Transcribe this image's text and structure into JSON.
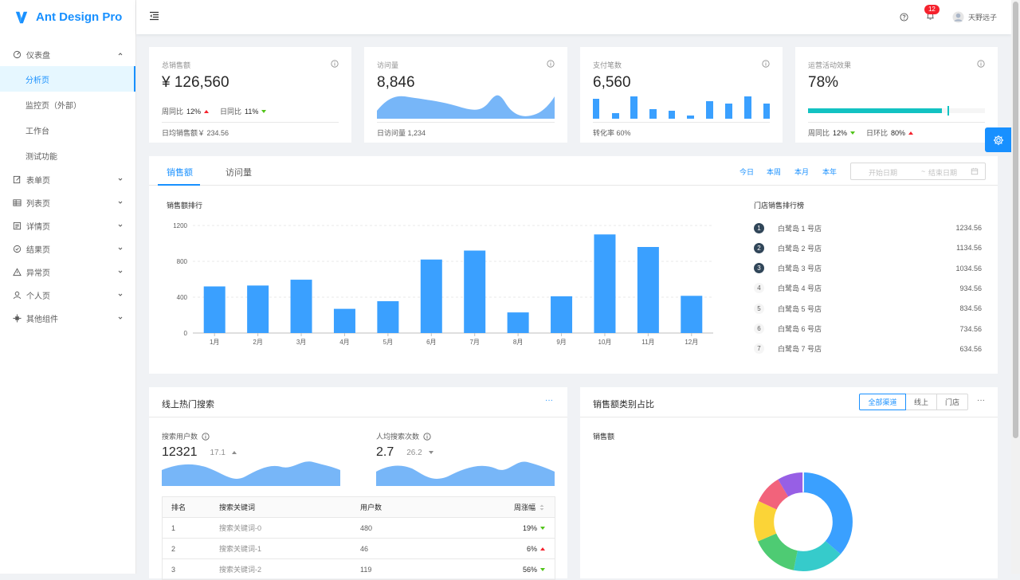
{
  "app": {
    "title": "Ant Design Pro"
  },
  "sidebar": {
    "dashboard": "仪表盘",
    "sub": [
      "分析页",
      "监控页（外部）",
      "工作台",
      "测试功能"
    ],
    "items": [
      "表单页",
      "列表页",
      "详情页",
      "结果页",
      "异常页",
      "个人页",
      "其他组件"
    ]
  },
  "header": {
    "notification_count": "12",
    "user": "天野远子"
  },
  "stats": {
    "sales": {
      "title": "总销售额",
      "value": "¥ 126,560",
      "wow_label": "周同比",
      "wow": "12%",
      "dod_label": "日同比",
      "dod": "11%",
      "footer": "日均销售额￥ 234.56"
    },
    "visits": {
      "title": "访问量",
      "value": "8,846",
      "footer": "日访问量 1,234"
    },
    "payments": {
      "title": "支付笔数",
      "value": "6,560",
      "footer": "转化率 60%"
    },
    "ops": {
      "title": "运营活动效果",
      "value": "78%",
      "progress": 0.78,
      "wow_label": "周同比",
      "wow": "12%",
      "dod_label": "日环比",
      "dod": "80%"
    }
  },
  "sales_card": {
    "tabs": [
      "销售额",
      "访问量"
    ],
    "periods": [
      "今日",
      "本周",
      "本月",
      "本年"
    ],
    "start_placeholder": "开始日期",
    "range_sep": "~",
    "end_placeholder": "结束日期",
    "chart_title": "销售额排行",
    "ranking_title": "门店销售排行榜",
    "ranking": [
      {
        "rank": "1",
        "name": "白鹭岛 1 号店",
        "value": "1234.56"
      },
      {
        "rank": "2",
        "name": "白鹭岛 2 号店",
        "value": "1134.56"
      },
      {
        "rank": "3",
        "name": "白鹭岛 3 号店",
        "value": "1034.56"
      },
      {
        "rank": "4",
        "name": "白鹭岛 4 号店",
        "value": "934.56"
      },
      {
        "rank": "5",
        "name": "白鹭岛 5 号店",
        "value": "834.56"
      },
      {
        "rank": "6",
        "name": "白鹭岛 6 号店",
        "value": "734.56"
      },
      {
        "rank": "7",
        "name": "白鹭岛 7 号店",
        "value": "634.56"
      }
    ]
  },
  "chart_data": {
    "type": "bar",
    "categories": [
      "1月",
      "2月",
      "3月",
      "4月",
      "5月",
      "6月",
      "7月",
      "8月",
      "9月",
      "10月",
      "11月",
      "12月"
    ],
    "values": [
      520,
      530,
      595,
      270,
      355,
      820,
      920,
      230,
      410,
      1100,
      960,
      415
    ],
    "ylim": [
      0,
      1200
    ],
    "yticks": [
      0,
      400,
      800,
      1200
    ],
    "color": "#3aa0ff",
    "grid": true
  },
  "search_card": {
    "title": "线上热门搜索",
    "more": "···",
    "users_label": "搜索用户数",
    "users_value": "12321",
    "users_change": "17.1",
    "avg_label": "人均搜索次数",
    "avg_value": "2.7",
    "avg_change": "26.2",
    "columns": [
      "排名",
      "搜索关键词",
      "用户数",
      "周涨幅"
    ],
    "rows": [
      {
        "rank": "1",
        "keyword": "搜索关键词-0",
        "users": "480",
        "change": "19%",
        "dir": "down"
      },
      {
        "rank": "2",
        "keyword": "搜索关键词-1",
        "users": "46",
        "change": "6%",
        "dir": "up"
      },
      {
        "rank": "3",
        "keyword": "搜索关键词-2",
        "users": "119",
        "change": "56%",
        "dir": "down"
      }
    ]
  },
  "category_card": {
    "title": "销售额类别占比",
    "options": [
      "全部渠道",
      "线上",
      "门店"
    ],
    "more": "···",
    "label": "销售额"
  }
}
